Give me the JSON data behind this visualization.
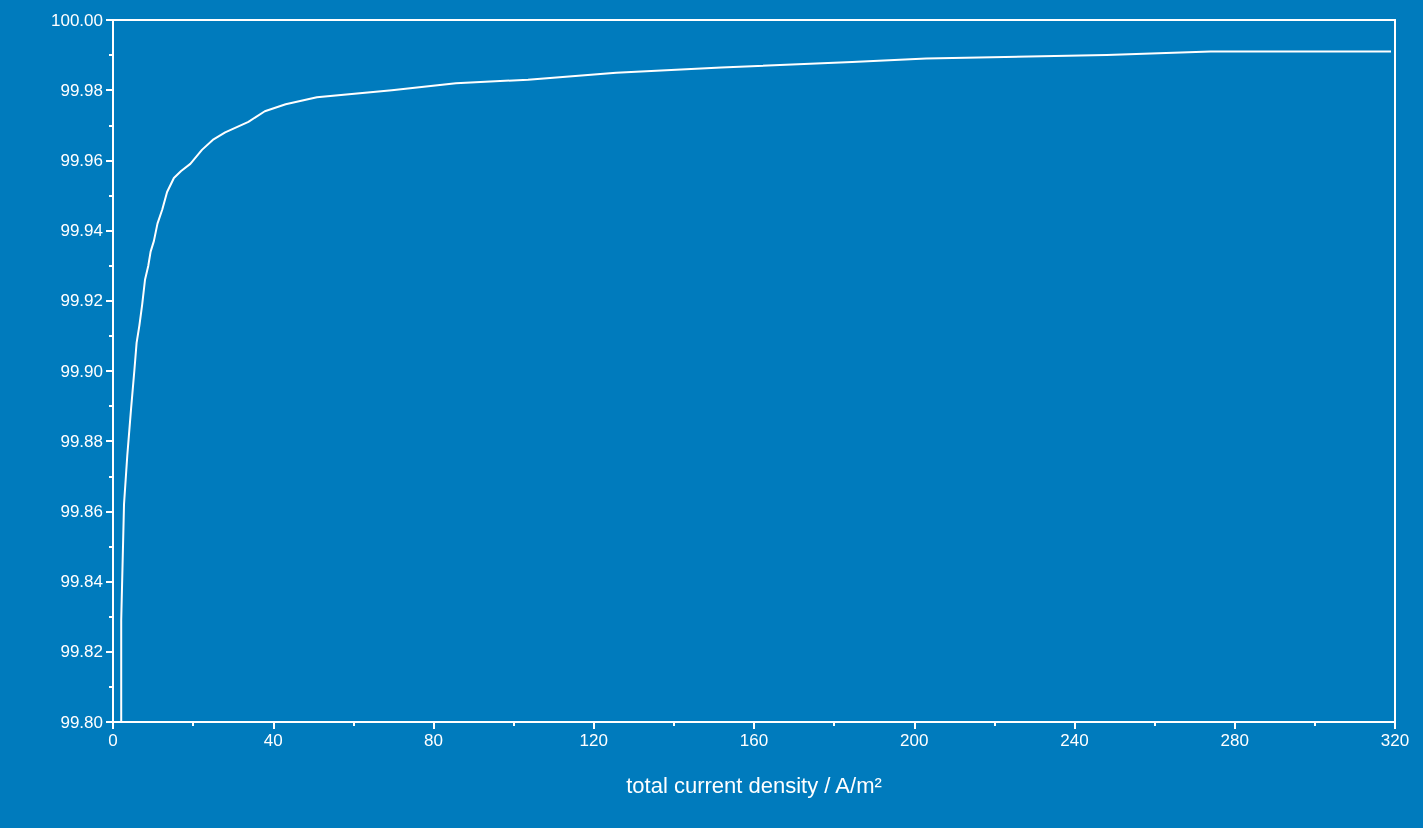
{
  "chart_data": {
    "type": "line",
    "xlabel": "total current density / A/m²",
    "x": [
      2.05,
      2.05,
      2.75,
      3.57,
      4.49,
      5.32,
      5.89,
      6.59,
      7.29,
      7.99,
      8.81,
      9.39,
      10.2,
      11.1,
      12.3,
      13.5,
      15.2,
      17.0,
      19.3,
      22.2,
      25.1,
      28.0,
      33.8,
      37.9,
      43.1,
      50.9,
      69.6,
      85.6,
      103.6,
      125.6,
      151.8,
      184.5,
      203,
      248,
      274,
      319
    ],
    "series": [
      {
        "color": "#ffffff",
        "values": [
          99.8,
          99.829,
          99.862,
          99.876,
          99.889,
          99.9,
          99.908,
          99.913,
          99.919,
          99.926,
          99.93,
          99.934,
          99.937,
          99.942,
          99.946,
          99.951,
          99.955,
          99.957,
          99.959,
          99.963,
          99.966,
          99.968,
          99.971,
          99.974,
          99.976,
          99.978,
          99.98,
          99.982,
          99.983,
          99.985,
          99.9865,
          99.988,
          99.989,
          99.99,
          99.991,
          99.991
        ]
      }
    ],
    "xlim": [
      0,
      320
    ],
    "xticks": [
      0,
      {
        "value": 20,
        "label": null
      },
      40,
      {
        "value": 60,
        "label": null
      },
      80,
      {
        "value": 100,
        "label": null
      },
      120,
      {
        "value": 140,
        "label": null
      },
      160,
      {
        "value": 180,
        "label": null
      },
      200,
      {
        "value": 220,
        "label": null
      },
      240,
      {
        "value": 260,
        "label": null
      },
      280,
      {
        "value": 300,
        "label": null
      },
      320
    ],
    "ylim": [
      99.8,
      100
    ],
    "yticks": [
      {
        "value": 99.8,
        "label": "99.80"
      },
      {
        "value": 99.81,
        "label": null
      },
      99.82,
      {
        "value": 99.83,
        "label": null
      },
      99.84,
      {
        "value": 99.85,
        "label": null
      },
      99.86,
      {
        "value": 99.87,
        "label": null
      },
      99.88,
      {
        "value": 99.89,
        "label": null
      },
      {
        "value": 99.9,
        "label": "99.90"
      },
      {
        "value": 99.91,
        "label": null
      },
      99.92,
      {
        "value": 99.93,
        "label": null
      },
      99.94,
      {
        "value": 99.95,
        "label": null
      },
      99.96,
      {
        "value": 99.97,
        "label": null
      },
      99.98,
      {
        "value": 99.99,
        "label": null
      },
      {
        "value": 100,
        "label": "100.00"
      }
    ],
    "grid": false,
    "marker": "none",
    "line_style": "solid"
  }
}
